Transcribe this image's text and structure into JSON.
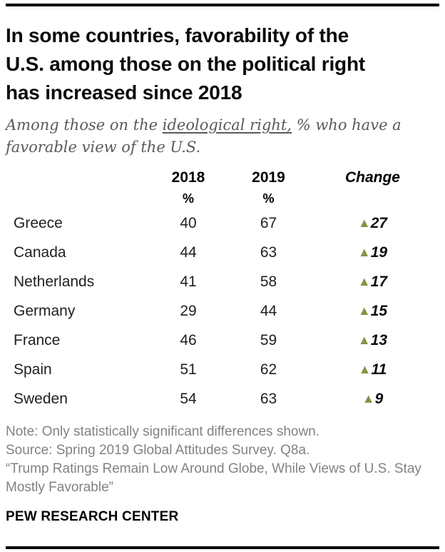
{
  "header": {
    "title_display": "In some countries, favorability of the\nU.S. among those on the political right\nhas increased since 2018",
    "subtitle_prefix": "Among those on the ",
    "subtitle_underline": "ideological right,",
    "subtitle_suffix": " % who have a\nfavorable view of the U.S."
  },
  "chart_data": {
    "type": "table",
    "title": "In some countries, favorability of the U.S. among those on the political right has increased since 2018",
    "subtitle": "Among those on the ideological right, % who have a favorable view of the U.S.",
    "columns": [
      "2018",
      "2019",
      "Change"
    ],
    "unit_labels": [
      "%",
      "%"
    ],
    "rows": [
      {
        "country": "Greece",
        "v2018": 40,
        "v2019": 67,
        "change": 27,
        "direction": "up"
      },
      {
        "country": "Canada",
        "v2018": 44,
        "v2019": 63,
        "change": 19,
        "direction": "up"
      },
      {
        "country": "Netherlands",
        "v2018": 41,
        "v2019": 58,
        "change": 17,
        "direction": "up"
      },
      {
        "country": "Germany",
        "v2018": 29,
        "v2019": 44,
        "change": 15,
        "direction": "up"
      },
      {
        "country": "France",
        "v2018": 46,
        "v2019": 59,
        "change": 13,
        "direction": "up"
      },
      {
        "country": "Spain",
        "v2018": 51,
        "v2019": 62,
        "change": 11,
        "direction": "up"
      },
      {
        "country": "Sweden",
        "v2018": 54,
        "v2019": 63,
        "change": 9,
        "direction": "up"
      }
    ],
    "up_triangle_glyph": "▲",
    "colors": {
      "increase": "#8a9146",
      "row_text": "#1f1f1f",
      "note_text": "#828282",
      "subtitle_text": "#5a5a5a"
    }
  },
  "footer": {
    "note": "Note: Only statistically significant differences shown.",
    "source": "Source: Spring 2019 Global Attitudes Survey. Q8a.",
    "report_title": "“Trump Ratings Remain Low Around Globe, While Views of U.S. Stay\nMostly Favorable”",
    "brand": "PEW RESEARCH CENTER"
  }
}
